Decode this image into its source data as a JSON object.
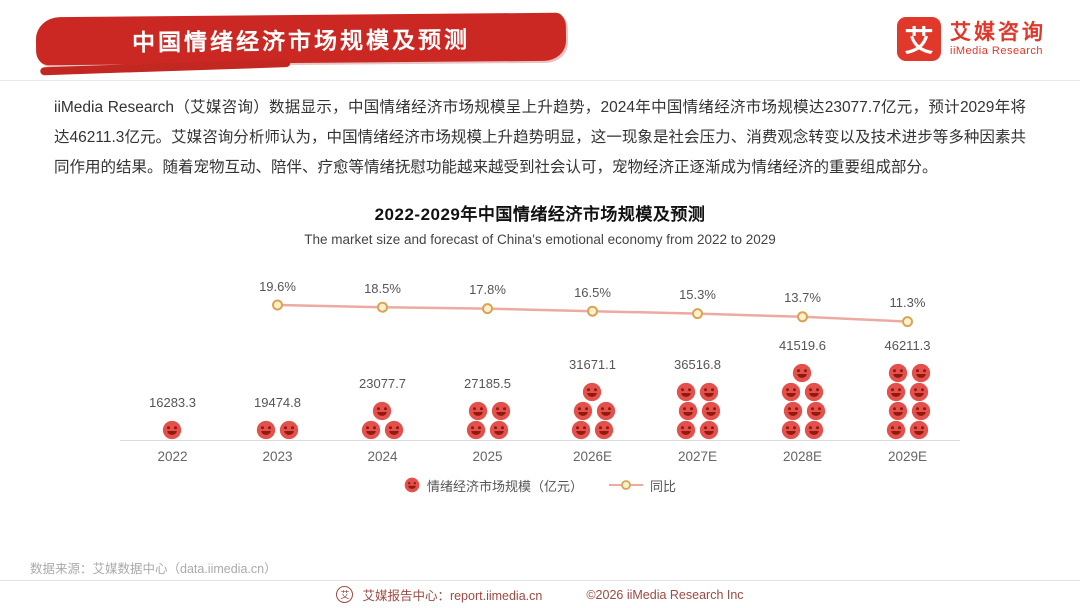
{
  "header": {
    "title": "中国情绪经济市场规模及预测",
    "brand": {
      "logo_char": "艾",
      "name_cn": "艾媒咨询",
      "name_en": "iiMedia Research"
    }
  },
  "intro": {
    "text": "iiMedia Research（艾媒咨询）数据显示，中国情绪经济市场规模呈上升趋势，2024年中国情绪经济市场规模达23077.7亿元，预计2029年将达46211.3亿元。艾媒咨询分析师认为，中国情绪经济市场规模上升趋势明显，这一现象是社会压力、消费观念转变以及技术进步等多种因素共同作用的结果。随着宠物互动、陪伴、疗愈等情绪抚慰功能越来越受到社会认可，宠物经济正逐渐成为情绪经济的重要组成部分。"
  },
  "chart_data": {
    "type": "bar",
    "title": "2022-2029年中国情绪经济市场规模及预测",
    "subtitle": "The market size and forecast of China's emotional economy from 2022 to 2029",
    "categories": [
      "2022",
      "2023",
      "2024",
      "2025",
      "2026E",
      "2027E",
      "2028E",
      "2029E"
    ],
    "series": [
      {
        "name": "情绪经济市场规模（亿元）",
        "type": "pictorial-bar",
        "values": [
          16283.3,
          19474.8,
          23077.7,
          27185.5,
          31671.1,
          36516.8,
          41519.6,
          46211.3
        ]
      },
      {
        "name": "同比",
        "type": "line",
        "unit": "%",
        "values": [
          null,
          19.6,
          18.5,
          17.8,
          16.5,
          15.3,
          13.7,
          11.3
        ]
      }
    ],
    "icon_counts": [
      1,
      2,
      3,
      4,
      5,
      6,
      7,
      8
    ],
    "legend_position": "bottom",
    "grid": false,
    "colors": {
      "smiley": "#e4514c",
      "smiley_detail": "#8e1a10",
      "line": "#ecaaa2",
      "marker_fill": "#fdf1cd",
      "marker_stroke": "#d9a455",
      "accent_red": "#cb2823",
      "logo_red": "#e0382a"
    }
  },
  "source": {
    "text": "数据来源：艾媒数据中心（data.iimedia.cn）"
  },
  "footer": {
    "logo_char": "艾",
    "report_center": "艾媒报告中心：report.iimedia.cn",
    "copyright": "©2026  iiMedia Research  Inc"
  }
}
